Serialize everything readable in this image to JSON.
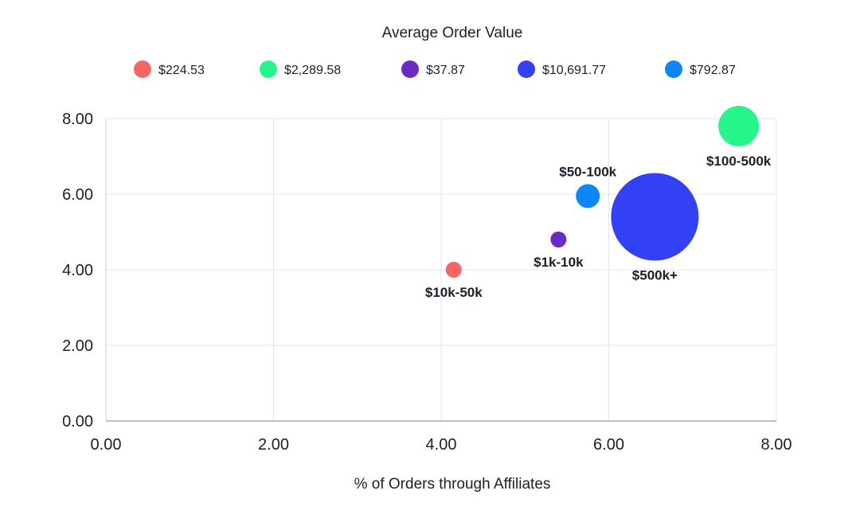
{
  "chart_data": {
    "type": "bubble",
    "legend_title": "Average Order Value",
    "xlabel": "% of Orders through Affiliates",
    "ylabel": "",
    "xlim": [
      0,
      8
    ],
    "ylim": [
      0,
      8
    ],
    "x_ticks": [
      "0.00",
      "2.00",
      "4.00",
      "6.00",
      "8.00"
    ],
    "y_ticks": [
      "0.00",
      "2.00",
      "4.00",
      "6.00",
      "8.00"
    ],
    "grid": true,
    "series": [
      {
        "name": "$224.53",
        "label": "$10k-50k",
        "x": 4.15,
        "y": 4.0,
        "size": 224.53,
        "color": "#f56565"
      },
      {
        "name": "$2,289.58",
        "label": "$100-500k",
        "x": 7.55,
        "y": 7.8,
        "size": 2289.58,
        "color": "#26f58b"
      },
      {
        "name": "$37.87",
        "label": "$1k-10k",
        "x": 5.4,
        "y": 4.8,
        "size": 37.87,
        "color": "#6a2bc4"
      },
      {
        "name": "$10,691.77",
        "label": "$500k+",
        "x": 6.55,
        "y": 5.4,
        "size": 10691.77,
        "color": "#3341f4"
      },
      {
        "name": "$792.87",
        "label": "$50-100k",
        "x": 5.75,
        "y": 5.95,
        "size": 792.87,
        "color": "#0f86f5"
      }
    ]
  }
}
